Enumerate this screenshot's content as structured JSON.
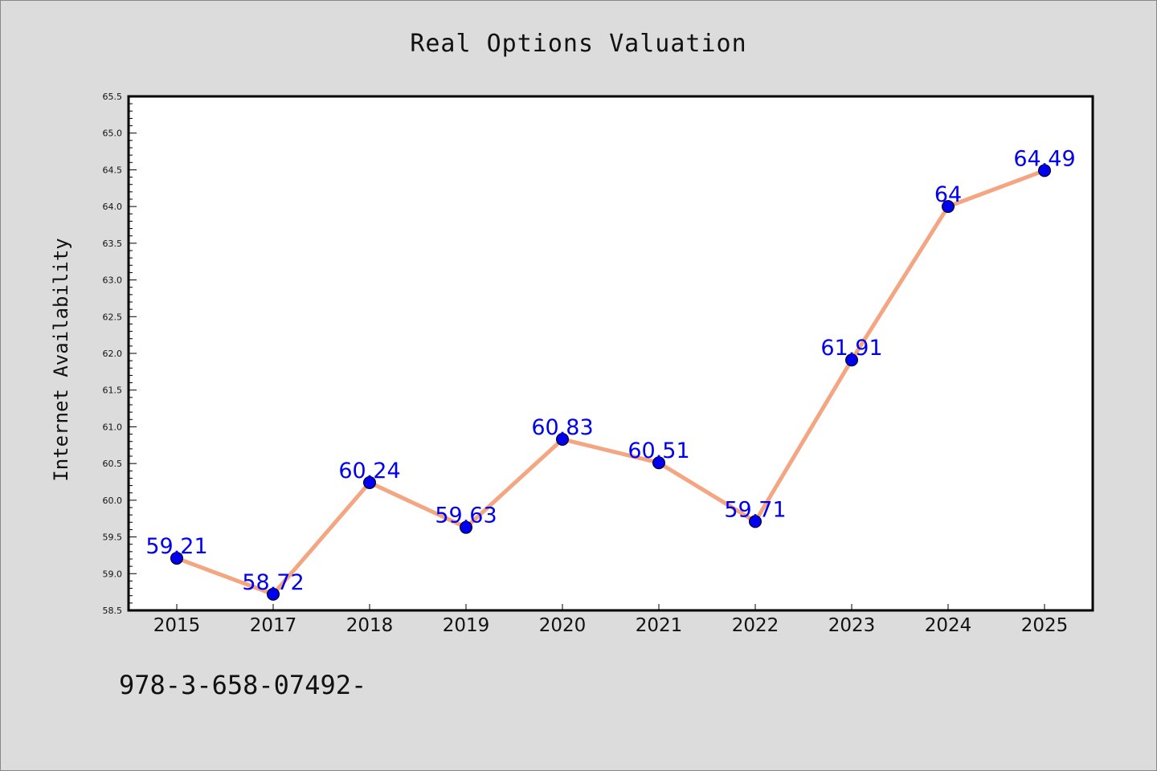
{
  "chart_data": {
    "type": "line",
    "title": "Real Options Valuation",
    "xlabel": "",
    "ylabel": "Internet Availability",
    "categories": [
      "2015",
      "2017",
      "2018",
      "2019",
      "2020",
      "2021",
      "2022",
      "2023",
      "2024",
      "2025"
    ],
    "series": [
      {
        "values": [
          59.21,
          58.72,
          60.24,
          59.63,
          60.83,
          60.51,
          59.71,
          61.91,
          64,
          64.49
        ],
        "data_labels": [
          "59.21",
          "58.72",
          "60.24",
          "59.63",
          "60.83",
          "60.51",
          "59.71",
          "61.91",
          "64",
          "64.49"
        ],
        "line_color": "#f4a582",
        "marker_color": "#0000ee"
      }
    ],
    "ylim": [
      58.5,
      65.5
    ],
    "y_ticks": [
      "58.5",
      "59.0",
      "59.5",
      "60.0",
      "60.5",
      "61.0",
      "61.5",
      "62.0",
      "62.5",
      "63.0",
      "63.5",
      "64.0",
      "64.5",
      "65.0",
      "65.5"
    ],
    "grid": false,
    "legend": "none"
  },
  "footer_text": "978-3-658-07492-",
  "colors": {
    "background": "#dcdcdc",
    "plot_background": "#ffffff",
    "label_color": "#0000ee"
  }
}
